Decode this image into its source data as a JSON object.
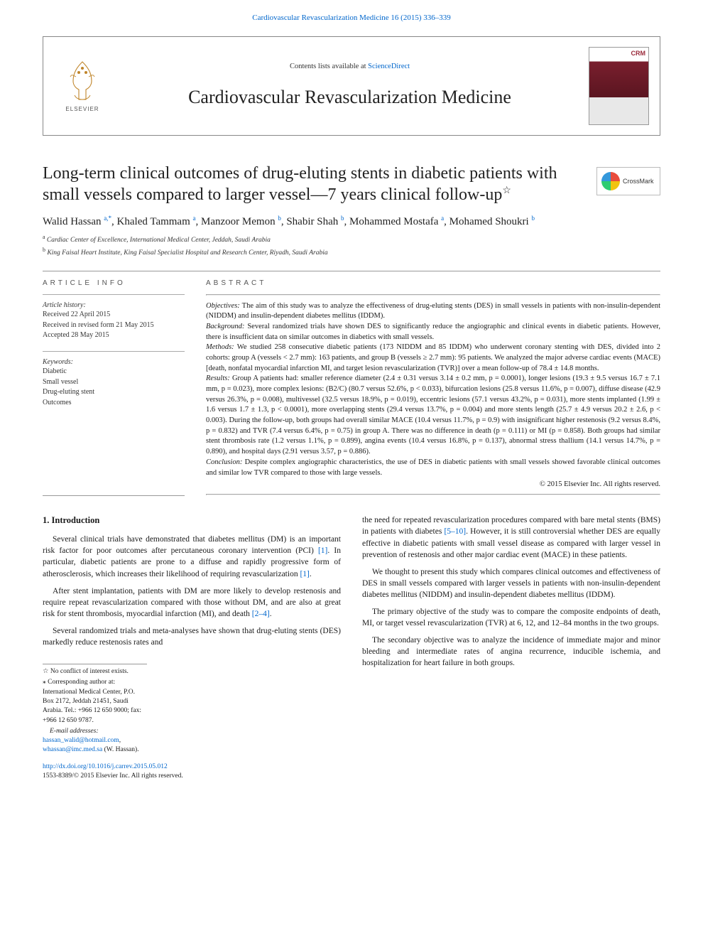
{
  "top_link": {
    "text_prefix": "",
    "journal_ref": "Cardiovascular Revascularization Medicine 16 (2015) 336–339"
  },
  "header": {
    "elsevier_label": "ELSEVIER",
    "contents_prefix": "Contents lists available at ",
    "contents_link": "ScienceDirect",
    "journal_name": "Cardiovascular Revascularization Medicine",
    "cover_badge": "CRM"
  },
  "crossmark_label": "CrossMark",
  "title": "Long-term clinical outcomes of drug-eluting stents in diabetic patients with small vessels compared to larger vessel—7 years clinical follow-up",
  "title_note_marker": "☆",
  "authors_html": "Walid Hassan <sup>a,*</sup>, Khaled Tammam <sup>a</sup>, Manzoor Memon <sup>b</sup>, Shabir Shah <sup>b</sup>, Mohammed Mostafa <sup>a</sup>, Mohamed Shoukri <sup>b</sup>",
  "affiliations": {
    "a": "Cardiac Center of Excellence, International Medical Center, Jeddah, Saudi Arabia",
    "b": "King Faisal Heart Institute, King Faisal Specialist Hospital and Research Center, Riyadh, Saudi Arabia"
  },
  "article_info": {
    "heading": "article info",
    "history_label": "Article history:",
    "received": "Received 22 April 2015",
    "revised": "Received in revised form 21 May 2015",
    "accepted": "Accepted 28 May 2015",
    "keywords_label": "Keywords:",
    "keywords": [
      "Diabetic",
      "Small vessel",
      "Drug-eluting stent",
      "Outcomes"
    ]
  },
  "abstract": {
    "heading": "abstract",
    "objectives_label": "Objectives:",
    "objectives": " The aim of this study was to analyze the effectiveness of drug-eluting stents (DES) in small vessels in patients with non-insulin-dependent (NIDDM) and insulin-dependent diabetes mellitus (IDDM).",
    "background_label": "Background:",
    "background": " Several randomized trials have shown DES to significantly reduce the angiographic and clinical events in diabetic patients. However, there is insufficient data on similar outcomes in diabetics with small vessels.",
    "methods_label": "Methods:",
    "methods": " We studied 258 consecutive diabetic patients (173 NIDDM and 85 IDDM) who underwent coronary stenting with DES, divided into 2 cohorts: group A (vessels < 2.7 mm): 163 patients, and group B (vessels ≥ 2.7 mm): 95 patients. We analyzed the major adverse cardiac events (MACE) [death, nonfatal myocardial infarction MI, and target lesion revascularization (TVR)] over a mean follow-up of 78.4 ± 14.8 months.",
    "results_label": "Results:",
    "results": " Group A patients had: smaller reference diameter (2.4 ± 0.31 versus 3.14 ± 0.2 mm, p = 0.0001), longer lesions (19.3 ± 9.5 versus 16.7 ± 7.1 mm, p = 0.023), more complex lesions: (B2/C) (80.7 versus 52.6%, p < 0.033), bifurcation lesions (25.8 versus 11.6%, p = 0.007), diffuse disease (42.9 versus 26.3%, p = 0.008), multivessel (32.5 versus 18.9%, p = 0.019), eccentric lesions (57.1 versus 43.2%, p = 0.031), more stents implanted (1.99 ± 1.6 versus 1.7 ± 1.3, p < 0.0001), more overlapping stents (29.4 versus 13.7%, p = 0.004) and more stents length (25.7 ± 4.9 versus 20.2 ± 2.6, p < 0.003). During the follow-up, both groups had overall similar MACE (10.4 versus 11.7%, p = 0.9) with insignificant higher restenosis (9.2 versus 8.4%, p = 0.832) and TVR (7.4 versus 6.4%, p = 0.75) in group A. There was no difference in death (p = 0.111) or MI (p = 0.858). Both groups had similar stent thrombosis rate (1.2 versus 1.1%, p = 0.899), angina events (10.4 versus 16.8%, p = 0.137), abnormal stress thallium (14.1 versus 14.7%, p = 0.890), and hospital days (2.91 versus 3.57, p = 0.886).",
    "conclusion_label": "Conclusion:",
    "conclusion": " Despite complex angiographic characteristics, the use of DES in diabetic patients with small vessels showed favorable clinical outcomes and similar low TVR compared to those with large vessels.",
    "copyright": "© 2015 Elsevier Inc. All rights reserved."
  },
  "intro": {
    "heading": "1. Introduction",
    "p1_pre": "Several clinical trials have demonstrated that diabetes mellitus (DM) is an important risk factor for poor outcomes after percutaneous coronary intervention (PCI) ",
    "p1_ref": "[1]",
    "p1_mid": ". In particular, diabetic patients are prone to a diffuse and rapidly progressive form of atherosclerosis, which increases their likelihood of requiring revascularization ",
    "p1_ref2": "[1]",
    "p1_end": ".",
    "p2_pre": "After stent implantation, patients with DM are more likely to develop restenosis and require repeat revascularization compared with those without DM, and are also at great risk for stent thrombosis, myocardial infarction (MI), and death ",
    "p2_ref": "[2–4]",
    "p2_end": ".",
    "p3": "Several randomized trials and meta-analyses have shown that drug-eluting stents (DES) markedly reduce restenosis rates and",
    "col2_p1_pre": "the need for repeated revascularization procedures compared with bare metal stents (BMS) in patients with diabetes ",
    "col2_p1_ref": "[5–10]",
    "col2_p1_end": ". However, it is still controversial whether DES are equally effective in diabetic patients with small vessel disease as compared with larger vessel in prevention of restenosis and other major cardiac event (MACE) in these patients.",
    "col2_p2": "We thought to present this study which compares clinical outcomes and effectiveness of DES in small vessels compared with larger vessels in patients with non-insulin-dependent diabetes mellitus (NIDDM) and insulin-dependent diabetes mellitus (IDDM).",
    "col2_p3": "The primary objective of the study was to compare the composite endpoints of death, MI, or target vessel revascularization (TVR) at 6, 12, and 12–84 months in the two groups.",
    "col2_p4": "The secondary objective was to analyze the incidence of immediate major and minor bleeding and intermediate rates of angina recurrence, inducible ischemia, and hospitalization for heart failure in both groups."
  },
  "footnotes": {
    "conflict": "☆  No conflict of interest exists.",
    "corresponding": "⁎  Corresponding author at: International Medical Center, P.O. Box 2172, Jeddah 21451, Saudi Arabia. Tel.: +966 12 650 9000; fax: +966 12 650 9787.",
    "email_label": "E-mail addresses:",
    "email1": "hassan_walid@hotmail.com",
    "email_sep": ", ",
    "email2": "whassan@imc.med.sa",
    "email_suffix": " (W. Hassan)."
  },
  "doi": {
    "url": "http://dx.doi.org/10.1016/j.carrev.2015.05.012",
    "issn_line": "1553-8389/© 2015 Elsevier Inc. All rights reserved."
  },
  "colors": {
    "link": "#0066cc",
    "text": "#1a1a1a",
    "rule": "#999999",
    "cover_top": "#ffffff",
    "cover_mid": "#7a1f2e"
  }
}
